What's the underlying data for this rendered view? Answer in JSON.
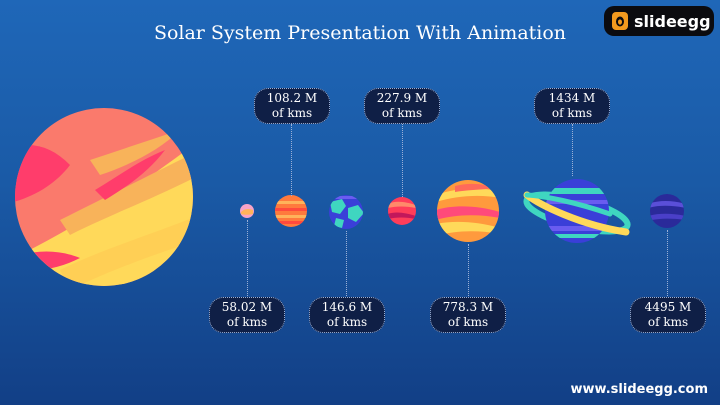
{
  "slide": {
    "title": "Solar System Presentation With Animation",
    "footer_url": "www.slideegg.com"
  },
  "brand": {
    "logo_text": "slideegg",
    "logo_icon": "egg-icon"
  },
  "distance_labels": [
    {
      "value": "58.02 M",
      "unit": "of kms"
    },
    {
      "value": "108.2 M",
      "unit": "of kms"
    },
    {
      "value": "146.6 M",
      "unit": "of kms"
    },
    {
      "value": "227.9 M",
      "unit": "of kms"
    },
    {
      "value": "778.3 M",
      "unit": "of kms"
    },
    {
      "value": "1434 M",
      "unit": "of kms"
    },
    {
      "value": "4495 M",
      "unit": "of kms"
    }
  ],
  "colors": {
    "background": "#1a5aa6",
    "label_fill": "#0f1f46",
    "sun_coral": "#fa7a6c",
    "sun_yellow": "#ffd95a",
    "sun_pink": "#ff3d6b"
  }
}
